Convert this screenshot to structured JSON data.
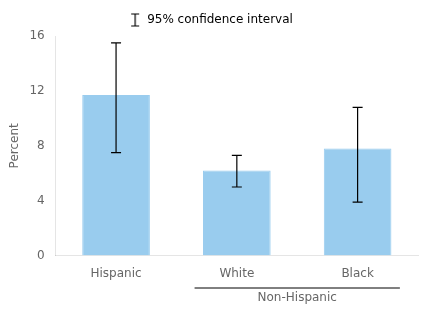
{
  "chart_data": {
    "type": "bar",
    "categories": [
      "Hispanic",
      "White",
      "Black"
    ],
    "values": [
      11.7,
      6.2,
      7.8
    ],
    "error_bars": {
      "name": "95% confidence interval",
      "lower": [
        7.5,
        5.0,
        3.9
      ],
      "upper": [
        15.5,
        7.3,
        10.8
      ]
    },
    "color": "#99ccee",
    "ylabel": "Percent",
    "ylim": [
      0,
      16
    ],
    "yticks": [
      0,
      4,
      8,
      12,
      16
    ],
    "grid": false,
    "legend": "top",
    "annotation": {
      "text": "Non-Hispanic",
      "from": "White",
      "to": "Black"
    }
  }
}
